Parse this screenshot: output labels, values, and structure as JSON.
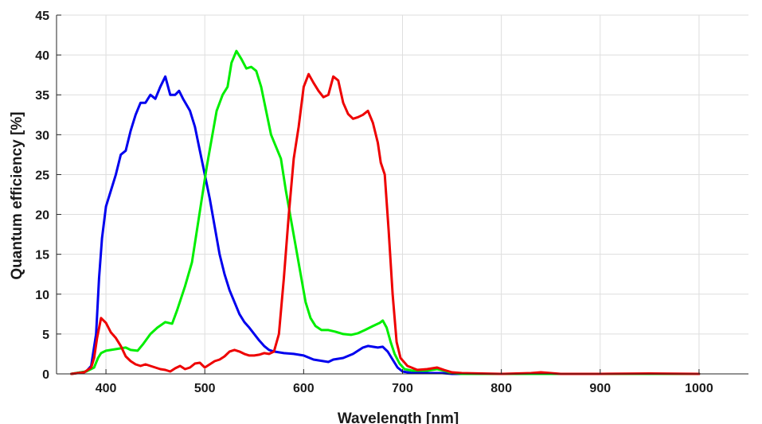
{
  "chart_data": {
    "type": "line",
    "xlabel": "Wavelength [nm]",
    "ylabel": "Quantum efficiency [%]",
    "xlim": [
      350,
      1050
    ],
    "ylim": [
      0,
      45
    ],
    "xticks": [
      400,
      500,
      600,
      700,
      800,
      900,
      1000
    ],
    "yticks": [
      0,
      5,
      10,
      15,
      20,
      25,
      30,
      35,
      40,
      45
    ],
    "grid": true,
    "series": [
      {
        "color": "#0000ee",
        "points": [
          [
            365,
            0
          ],
          [
            380,
            0.3
          ],
          [
            385,
            1
          ],
          [
            390,
            5
          ],
          [
            393,
            12
          ],
          [
            396,
            17
          ],
          [
            400,
            21
          ],
          [
            405,
            23
          ],
          [
            410,
            25
          ],
          [
            415,
            27.5
          ],
          [
            420,
            28
          ],
          [
            425,
            30.5
          ],
          [
            430,
            32.5
          ],
          [
            435,
            34
          ],
          [
            440,
            34
          ],
          [
            445,
            35
          ],
          [
            450,
            34.5
          ],
          [
            455,
            36
          ],
          [
            460,
            37.3
          ],
          [
            465,
            35
          ],
          [
            470,
            35
          ],
          [
            474,
            35.5
          ],
          [
            478,
            34.5
          ],
          [
            485,
            33
          ],
          [
            490,
            31
          ],
          [
            495,
            28
          ],
          [
            500,
            25
          ],
          [
            505,
            22
          ],
          [
            510,
            18.5
          ],
          [
            515,
            15
          ],
          [
            520,
            12.5
          ],
          [
            525,
            10.5
          ],
          [
            530,
            9
          ],
          [
            535,
            7.5
          ],
          [
            540,
            6.5
          ],
          [
            545,
            5.8
          ],
          [
            550,
            5
          ],
          [
            555,
            4.2
          ],
          [
            560,
            3.5
          ],
          [
            565,
            3
          ],
          [
            570,
            2.8
          ],
          [
            580,
            2.6
          ],
          [
            590,
            2.5
          ],
          [
            600,
            2.3
          ],
          [
            610,
            1.8
          ],
          [
            620,
            1.6
          ],
          [
            625,
            1.5
          ],
          [
            630,
            1.8
          ],
          [
            640,
            2
          ],
          [
            650,
            2.5
          ],
          [
            660,
            3.3
          ],
          [
            665,
            3.5
          ],
          [
            670,
            3.4
          ],
          [
            675,
            3.3
          ],
          [
            680,
            3.4
          ],
          [
            685,
            2.8
          ],
          [
            690,
            1.8
          ],
          [
            695,
            0.8
          ],
          [
            700,
            0.3
          ],
          [
            710,
            0.1
          ],
          [
            730,
            0.1
          ],
          [
            740,
            0.1
          ],
          [
            750,
            0
          ],
          [
            1000,
            0
          ]
        ]
      },
      {
        "color": "#00ee00",
        "points": [
          [
            365,
            0
          ],
          [
            380,
            0.3
          ],
          [
            388,
            0.8
          ],
          [
            392,
            2
          ],
          [
            395,
            2.6
          ],
          [
            400,
            2.9
          ],
          [
            410,
            3.1
          ],
          [
            420,
            3.3
          ],
          [
            425,
            3
          ],
          [
            432,
            2.9
          ],
          [
            438,
            3.8
          ],
          [
            445,
            5
          ],
          [
            452,
            5.8
          ],
          [
            460,
            6.5
          ],
          [
            467,
            6.3
          ],
          [
            472,
            8
          ],
          [
            480,
            11
          ],
          [
            487,
            14
          ],
          [
            492,
            18
          ],
          [
            497,
            22
          ],
          [
            502,
            26
          ],
          [
            507,
            29.5
          ],
          [
            512,
            33
          ],
          [
            518,
            35
          ],
          [
            523,
            36
          ],
          [
            527,
            39
          ],
          [
            532,
            40.5
          ],
          [
            537,
            39.5
          ],
          [
            542,
            38.3
          ],
          [
            547,
            38.5
          ],
          [
            552,
            38
          ],
          [
            557,
            36
          ],
          [
            562,
            33
          ],
          [
            567,
            30
          ],
          [
            572,
            28.5
          ],
          [
            577,
            27
          ],
          [
            582,
            23
          ],
          [
            587,
            19.5
          ],
          [
            592,
            16
          ],
          [
            597,
            12.5
          ],
          [
            602,
            9
          ],
          [
            607,
            7
          ],
          [
            612,
            6
          ],
          [
            618,
            5.5
          ],
          [
            625,
            5.5
          ],
          [
            632,
            5.3
          ],
          [
            640,
            5
          ],
          [
            648,
            4.9
          ],
          [
            655,
            5.1
          ],
          [
            662,
            5.5
          ],
          [
            670,
            6
          ],
          [
            677,
            6.4
          ],
          [
            680,
            6.7
          ],
          [
            684,
            5.8
          ],
          [
            688,
            4
          ],
          [
            692,
            2.5
          ],
          [
            697,
            1.3
          ],
          [
            702,
            0.6
          ],
          [
            710,
            0.4
          ],
          [
            725,
            0.4
          ],
          [
            735,
            0.6
          ],
          [
            742,
            0.4
          ],
          [
            750,
            0.1
          ],
          [
            760,
            0
          ],
          [
            1000,
            0
          ]
        ]
      },
      {
        "color": "#ee0000",
        "points": [
          [
            365,
            0
          ],
          [
            378,
            0.2
          ],
          [
            385,
            0.8
          ],
          [
            388,
            2
          ],
          [
            391,
            4.5
          ],
          [
            395,
            7
          ],
          [
            400,
            6.4
          ],
          [
            405,
            5.2
          ],
          [
            410,
            4.5
          ],
          [
            415,
            3.5
          ],
          [
            420,
            2.2
          ],
          [
            425,
            1.6
          ],
          [
            430,
            1.2
          ],
          [
            435,
            1
          ],
          [
            440,
            1.2
          ],
          [
            445,
            1
          ],
          [
            450,
            0.8
          ],
          [
            455,
            0.6
          ],
          [
            460,
            0.5
          ],
          [
            465,
            0.3
          ],
          [
            470,
            0.7
          ],
          [
            475,
            1
          ],
          [
            480,
            0.6
          ],
          [
            485,
            0.8
          ],
          [
            490,
            1.3
          ],
          [
            495,
            1.4
          ],
          [
            500,
            0.8
          ],
          [
            505,
            1.2
          ],
          [
            510,
            1.6
          ],
          [
            515,
            1.8
          ],
          [
            520,
            2.2
          ],
          [
            525,
            2.8
          ],
          [
            530,
            3
          ],
          [
            535,
            2.8
          ],
          [
            540,
            2.5
          ],
          [
            545,
            2.3
          ],
          [
            550,
            2.3
          ],
          [
            555,
            2.4
          ],
          [
            560,
            2.6
          ],
          [
            565,
            2.5
          ],
          [
            570,
            2.8
          ],
          [
            575,
            5
          ],
          [
            580,
            12
          ],
          [
            585,
            20
          ],
          [
            590,
            27
          ],
          [
            595,
            31
          ],
          [
            600,
            36
          ],
          [
            605,
            37.6
          ],
          [
            610,
            36.5
          ],
          [
            615,
            35.5
          ],
          [
            620,
            34.7
          ],
          [
            625,
            35
          ],
          [
            630,
            37.3
          ],
          [
            635,
            36.8
          ],
          [
            640,
            34
          ],
          [
            645,
            32.6
          ],
          [
            650,
            32
          ],
          [
            655,
            32.2
          ],
          [
            660,
            32.5
          ],
          [
            665,
            33
          ],
          [
            670,
            31.5
          ],
          [
            675,
            29
          ],
          [
            678,
            26.5
          ],
          [
            682,
            25
          ],
          [
            686,
            18
          ],
          [
            690,
            10
          ],
          [
            694,
            4
          ],
          [
            698,
            2
          ],
          [
            705,
            1
          ],
          [
            715,
            0.5
          ],
          [
            725,
            0.6
          ],
          [
            735,
            0.8
          ],
          [
            742,
            0.5
          ],
          [
            750,
            0.2
          ],
          [
            760,
            0.1
          ],
          [
            800,
            0
          ],
          [
            830,
            0.1
          ],
          [
            840,
            0.2
          ],
          [
            850,
            0.1
          ],
          [
            860,
            0
          ],
          [
            900,
            0
          ],
          [
            950,
            0.05
          ],
          [
            1000,
            0
          ]
        ]
      }
    ]
  }
}
